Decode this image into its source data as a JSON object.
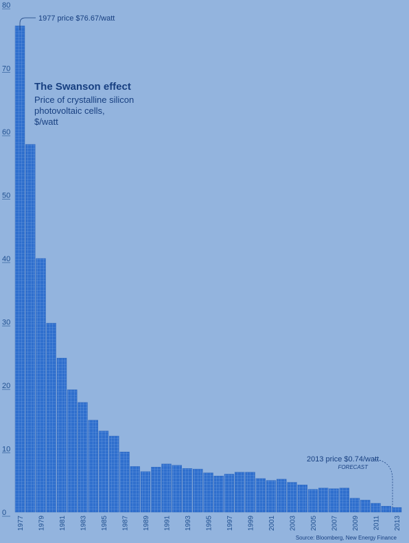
{
  "chart_data": {
    "type": "bar",
    "title": "The Swanson effect",
    "subtitle": [
      "Price of crystalline silicon",
      "photovoltaic cells,",
      "$/watt"
    ],
    "categories": [
      "1977",
      "1978",
      "1979",
      "1980",
      "1981",
      "1982",
      "1983",
      "1984",
      "1985",
      "1986",
      "1987",
      "1988",
      "1989",
      "1990",
      "1991",
      "1992",
      "1993",
      "1994",
      "1995",
      "1996",
      "1997",
      "1998",
      "1999",
      "2000",
      "2001",
      "2002",
      "2003",
      "2004",
      "2005",
      "2006",
      "2007",
      "2008",
      "2009",
      "2010",
      "2011",
      "2012",
      "2013"
    ],
    "x_tick_labels": [
      "1977",
      "1979",
      "1981",
      "1983",
      "1985",
      "1987",
      "1989",
      "1991",
      "1993",
      "1995",
      "1997",
      "1999",
      "2001",
      "2003",
      "2005",
      "2007",
      "2009",
      "2011",
      "2013"
    ],
    "values": [
      76.67,
      58.0,
      40.0,
      29.8,
      24.3,
      19.3,
      17.3,
      14.5,
      12.8,
      12.0,
      9.5,
      7.2,
      6.4,
      7.1,
      7.6,
      7.4,
      6.9,
      6.8,
      6.2,
      5.7,
      6.0,
      6.3,
      6.3,
      5.3,
      5.0,
      5.2,
      4.7,
      4.3,
      3.6,
      3.8,
      3.7,
      3.8,
      2.2,
      1.9,
      1.4,
      0.95,
      0.74
    ],
    "y_ticks": [
      "0",
      "10",
      "20",
      "30",
      "40",
      "50",
      "60",
      "70",
      "80"
    ],
    "ylim": [
      0,
      80
    ],
    "annotations": {
      "first": "1977 price $76.67/watt",
      "last": "2013 price $0.74/watt",
      "last_note": "FORECAST"
    },
    "source": "Source: Bloomberg, New Energy Finance",
    "colors": {
      "background": "#93b4de",
      "bar": "#2f6fcd",
      "bar_grid": "#7fa9e6",
      "text": "#173f80"
    }
  }
}
